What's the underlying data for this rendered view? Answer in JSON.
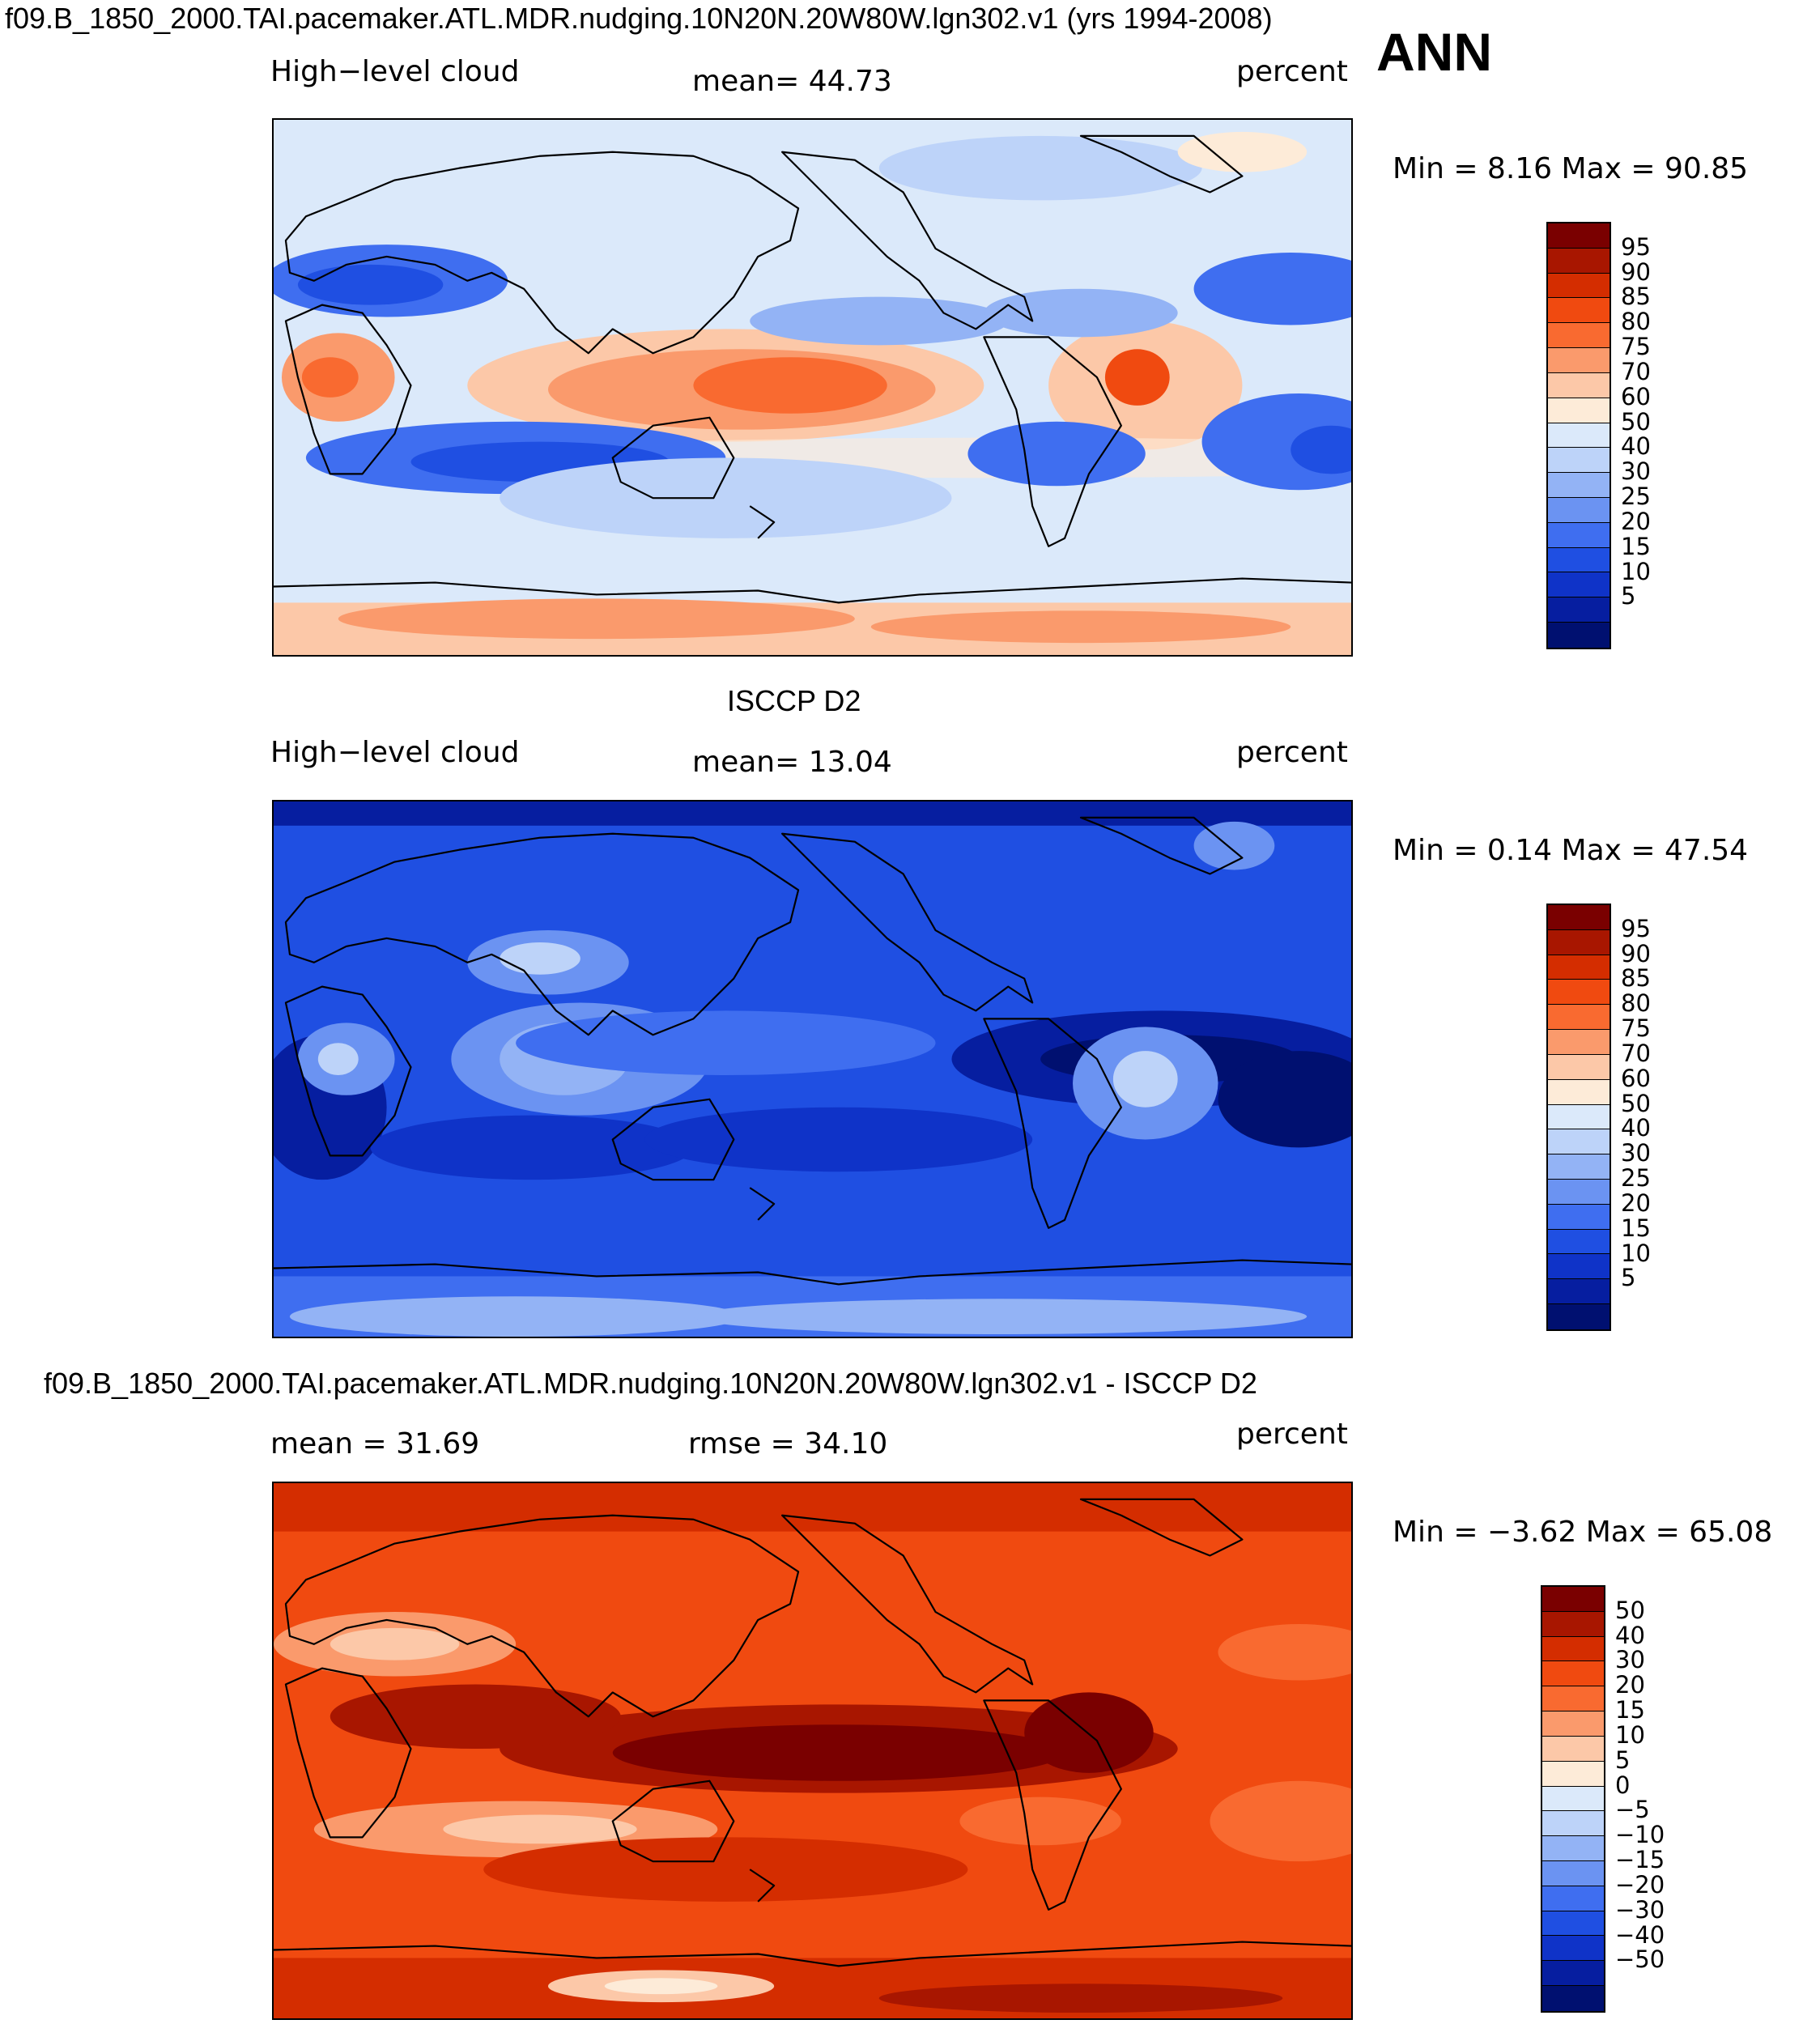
{
  "title": "f09.B_1850_2000.TAI.pacemaker.ATL.MDR.nudging.10N20N.20W80W.lgn302.v1 (yrs 1994-2008)",
  "season": "ANN",
  "panels": [
    {
      "heading": "",
      "field": "High−level cloud",
      "stat": "mean=   44.73",
      "units": "percent",
      "minmax": "Min =    8.16  Max =   90.85",
      "scheme": "model",
      "colorbar": {
        "colors": [
          "#7a0000",
          "#a81600",
          "#d42d00",
          "#f04a10",
          "#f96a30",
          "#fa9a6c",
          "#fcc8a8",
          "#fdebd8",
          "#dbe9fa",
          "#bdd3f9",
          "#93b3f5",
          "#6b93f2",
          "#3f6ef0",
          "#1f4fe2",
          "#0f33c8",
          "#061ea0",
          "#001070"
        ],
        "labels": [
          "95",
          "90",
          "85",
          "80",
          "75",
          "70",
          "60",
          "50",
          "40",
          "30",
          "25",
          "20",
          "15",
          "10",
          "5"
        ]
      }
    },
    {
      "heading": "ISCCP D2",
      "field": "High−level cloud",
      "stat": "mean=   13.04",
      "units": "percent",
      "minmax": "Min =    0.14  Max =   47.54",
      "scheme": "obs",
      "colorbar": {
        "colors": [
          "#7a0000",
          "#a81600",
          "#d42d00",
          "#f04a10",
          "#f96a30",
          "#fa9a6c",
          "#fcc8a8",
          "#fdebd8",
          "#dbe9fa",
          "#bdd3f9",
          "#93b3f5",
          "#6b93f2",
          "#3f6ef0",
          "#1f4fe2",
          "#0f33c8",
          "#061ea0",
          "#001070"
        ],
        "labels": [
          "95",
          "90",
          "85",
          "80",
          "75",
          "70",
          "60",
          "50",
          "40",
          "30",
          "25",
          "20",
          "15",
          "10",
          "5"
        ]
      }
    },
    {
      "heading": "f09.B_1850_2000.TAI.pacemaker.ATL.MDR.nudging.10N20N.20W80W.lgn302.v1 - ISCCP D2",
      "field": "mean =   31.69",
      "stat": "rmse =   34.10",
      "units": "percent",
      "minmax": "Min =  −3.62  Max =   65.08",
      "scheme": "diff",
      "colorbar": {
        "colors": [
          "#7a0000",
          "#a81600",
          "#d42d00",
          "#f04a10",
          "#f96a30",
          "#fa9a6c",
          "#fcc8a8",
          "#fdebd8",
          "#dbe9fa",
          "#bdd3f9",
          "#93b3f5",
          "#6b93f2",
          "#3f6ef0",
          "#1f4fe2",
          "#0f33c8",
          "#061ea0",
          "#001070"
        ],
        "labels": [
          "50",
          "40",
          "30",
          "20",
          "15",
          "10",
          "5",
          "0",
          "−5",
          "−10",
          "−15",
          "−20",
          "−30",
          "−40",
          "−50"
        ]
      }
    }
  ]
}
